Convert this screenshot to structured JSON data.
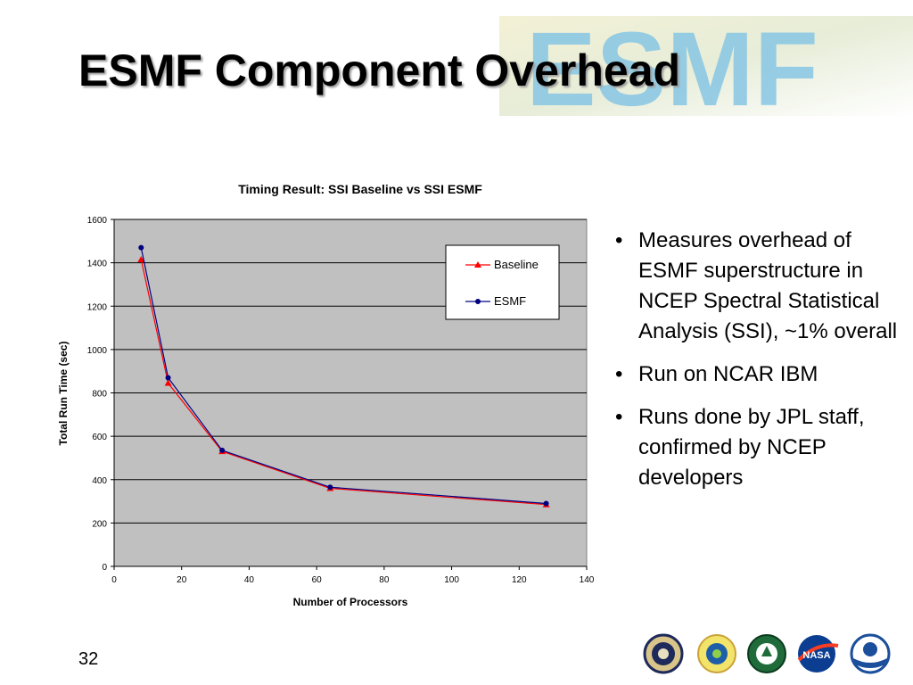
{
  "slide": {
    "title": "ESMF Component Overhead",
    "logo_text": "ESMF",
    "page_number": "32"
  },
  "bullets": [
    {
      "text": "Measures overhead of ESMF superstructure in NCEP Spectral Statistical Analysis (SSI), ~1% overall"
    },
    {
      "text": "Run on NCAR IBM"
    },
    {
      "text": "Runs done by JPL staff, confirmed by NCEP developers"
    }
  ],
  "agency_logos": [
    "dod-seal-icon",
    "nsf-logo-icon",
    "doe-seal-icon",
    "nasa-logo-icon",
    "noaa-logo-icon"
  ],
  "colors": {
    "plot_bg": "#c0c0c0",
    "baseline": "#ff0000",
    "esmf": "#000080",
    "logo_blue": "#86c6e4"
  },
  "chart_data": {
    "type": "line",
    "title": "Timing Result: SSI Baseline vs SSI ESMF",
    "xlabel": "Number of Processors",
    "ylabel": "Total Run Time (sec)",
    "xlim": [
      0,
      140
    ],
    "ylim": [
      0,
      1600
    ],
    "xticks": [
      "0",
      "20",
      "40",
      "60",
      "80",
      "100",
      "120",
      "140"
    ],
    "yticks": [
      "0",
      "200",
      "400",
      "600",
      "800",
      "1000",
      "1200",
      "1400",
      "1600"
    ],
    "grid": "horizontal",
    "legend_position": "top-right",
    "series": [
      {
        "name": "Baseline",
        "marker": "triangle",
        "color": "#ff0000",
        "x": [
          8,
          16,
          32,
          64,
          128
        ],
        "y": [
          1415,
          845,
          530,
          360,
          285
        ]
      },
      {
        "name": "ESMF",
        "marker": "circle",
        "color": "#000080",
        "x": [
          8,
          16,
          32,
          64,
          128
        ],
        "y": [
          1470,
          870,
          535,
          365,
          290
        ]
      }
    ]
  }
}
